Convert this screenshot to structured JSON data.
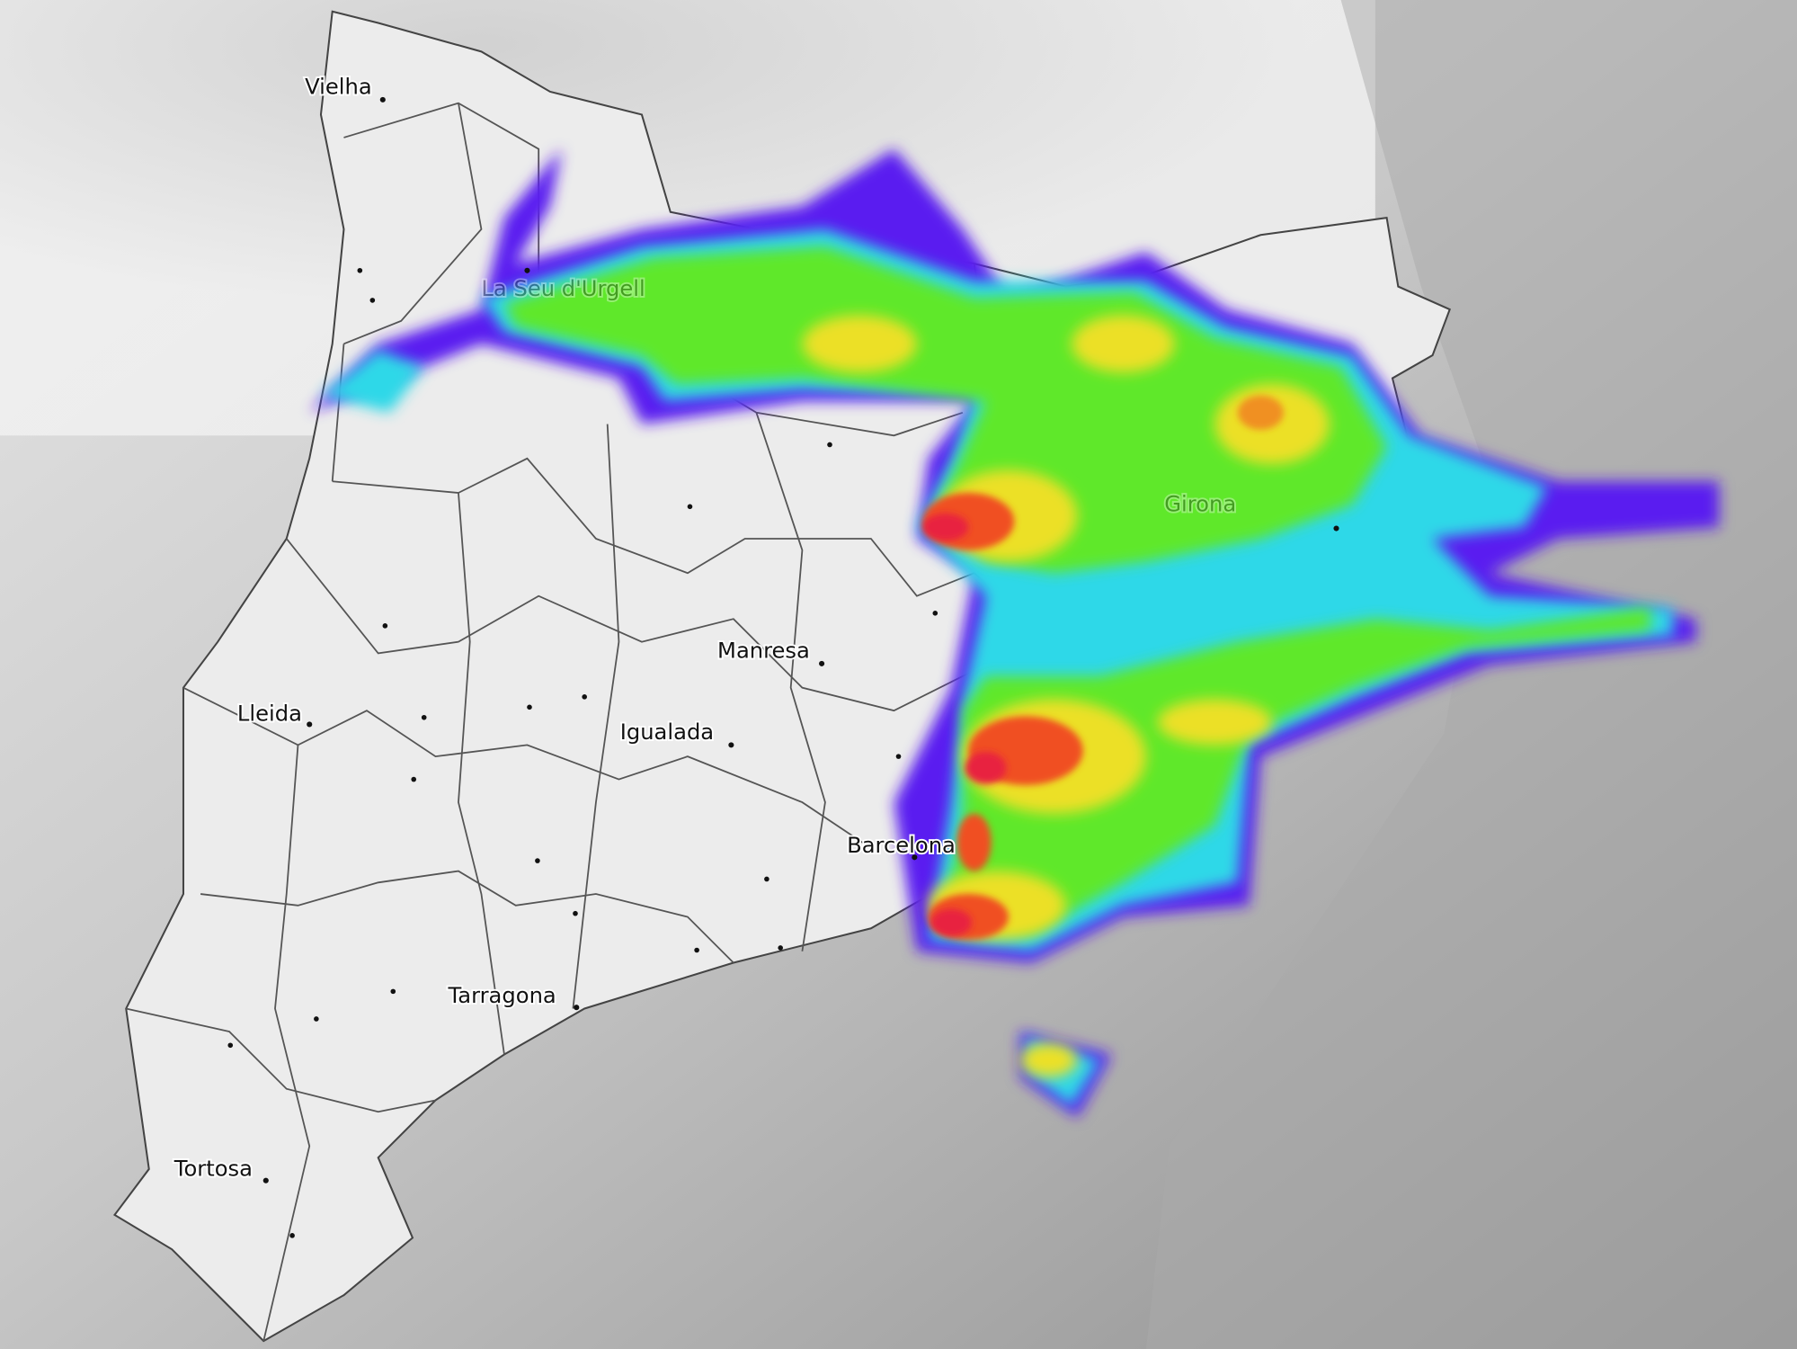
{
  "map": {
    "cities": [
      {
        "name": "Vielha"
      },
      {
        "name": "La Seu d'Urgell"
      },
      {
        "name": "Lleida"
      },
      {
        "name": "Manresa"
      },
      {
        "name": "Igualada"
      },
      {
        "name": "Barcelona"
      },
      {
        "name": "Girona"
      },
      {
        "name": "Tarragona"
      },
      {
        "name": "Tortosa"
      }
    ]
  }
}
